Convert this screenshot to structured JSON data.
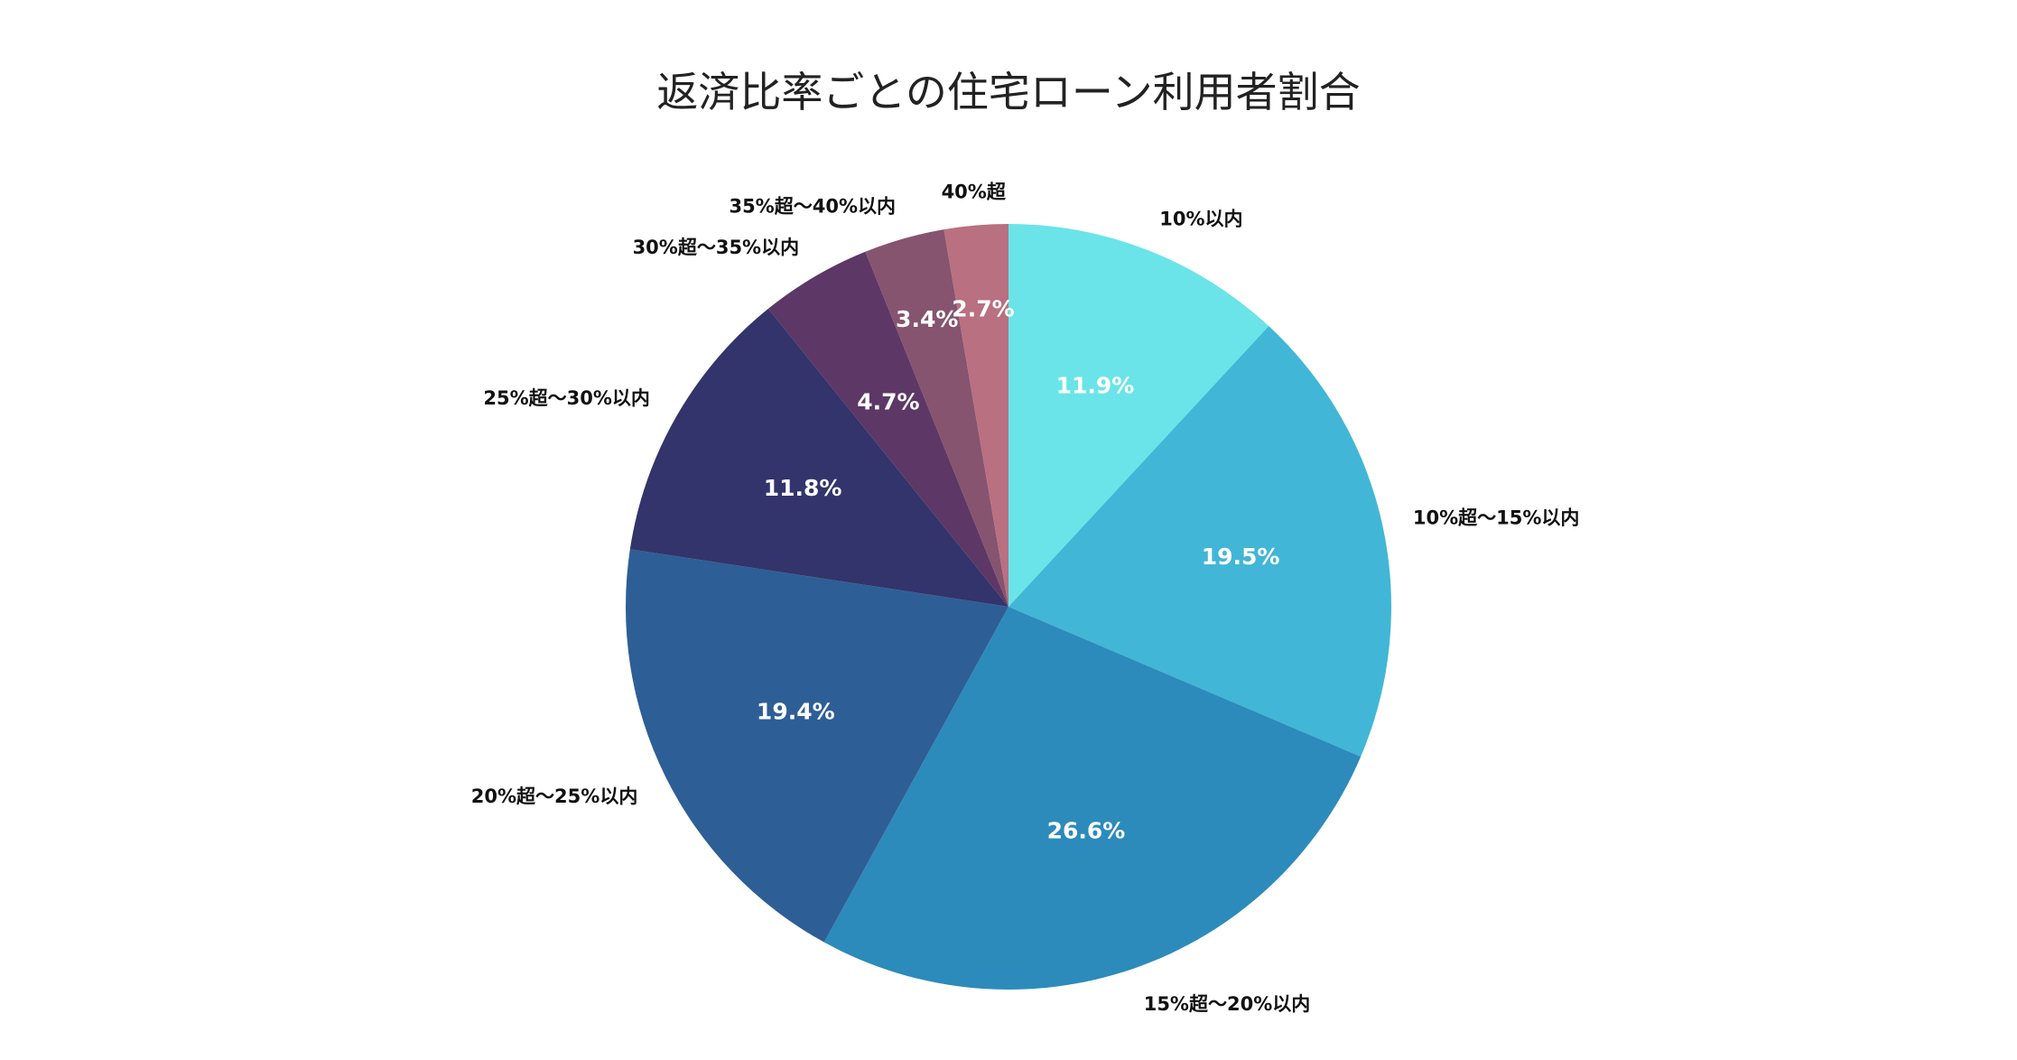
{
  "chart_data": {
    "type": "pie",
    "title": "返済比率ごとの住宅ローン利用者割合",
    "start_angle_deg": 0,
    "direction": "clockwise",
    "legend": "none",
    "slices": [
      {
        "label": "10%以内",
        "value": 11.9,
        "value_label": "11.9%",
        "color": "#6ae4e8"
      },
      {
        "label": "10%超〜15%以内",
        "value": 19.5,
        "value_label": "19.5%",
        "color": "#42b6d6"
      },
      {
        "label": "15%超〜20%以内",
        "value": 26.6,
        "value_label": "26.6%",
        "color": "#2c8bbb"
      },
      {
        "label": "20%超〜25%以内",
        "value": 19.4,
        "value_label": "19.4%",
        "color": "#2e5e96"
      },
      {
        "label": "25%超〜30%以内",
        "value": 11.8,
        "value_label": "11.8%",
        "color": "#32346b"
      },
      {
        "label": "30%超〜35%以内",
        "value": 4.7,
        "value_label": "4.7%",
        "color": "#5d3766"
      },
      {
        "label": "35%超〜40%以内",
        "value": 3.4,
        "value_label": "3.4%",
        "color": "#86546f"
      },
      {
        "label": "40%超",
        "value": 2.7,
        "value_label": "2.7%",
        "color": "#b97081"
      }
    ]
  }
}
